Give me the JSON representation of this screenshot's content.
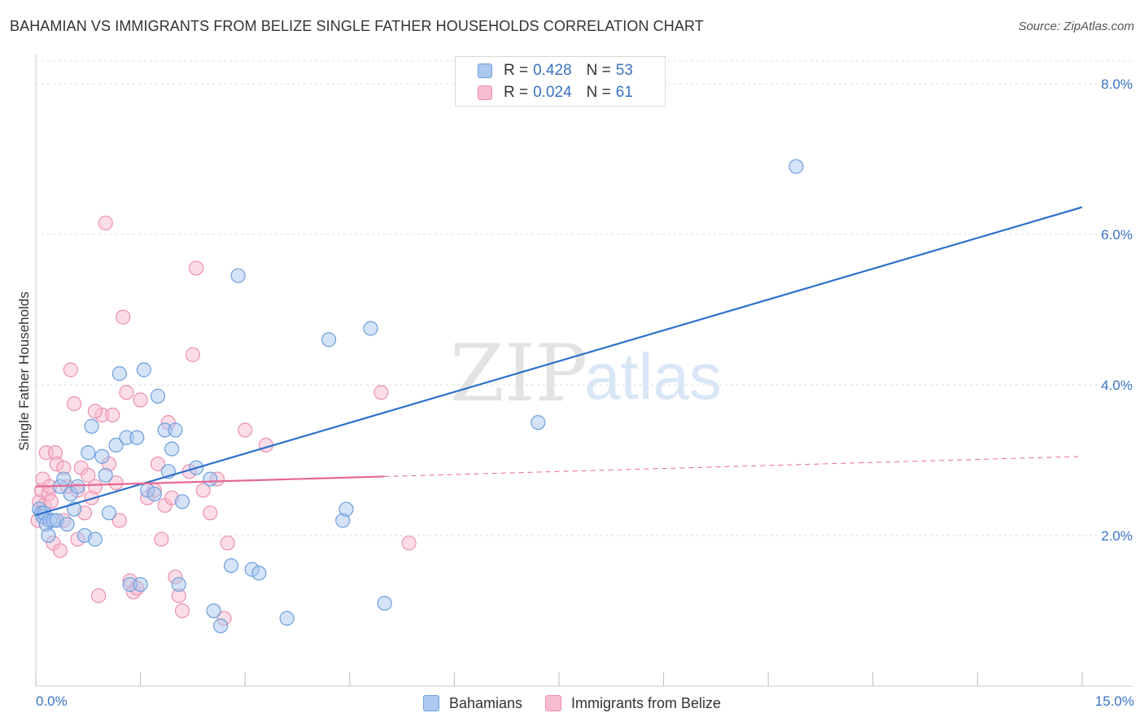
{
  "header": {
    "title": "BAHAMIAN VS IMMIGRANTS FROM BELIZE SINGLE FATHER HOUSEHOLDS CORRELATION CHART",
    "source": "Source: ZipAtlas.com"
  },
  "watermark": {
    "zip": "ZIP",
    "atlas": "atlas"
  },
  "legend": {
    "r_label": "R =",
    "n_label": "N =",
    "series": [
      {
        "name": "Bahamians",
        "r": "0.428",
        "n": "53",
        "color": "#aac8f0",
        "stroke": "#6d9fdc",
        "line": "#2c6fcd"
      },
      {
        "name": "Immigrants from Belize",
        "r": "0.024",
        "n": "61",
        "color": "#f8bcd0",
        "stroke": "#ec90b0",
        "line": "#e56894"
      }
    ]
  },
  "chart_data": {
    "type": "scatter",
    "title": "BAHAMIAN VS IMMIGRANTS FROM BELIZE SINGLE FATHER HOUSEHOLDS CORRELATION CHART",
    "xlabel": "",
    "ylabel": "Single Father Households",
    "xlim": [
      0,
      15
    ],
    "ylim": [
      0,
      8.3
    ],
    "x_tick_labels": [
      "0.0%",
      "15.0%"
    ],
    "y_ticks": [
      2,
      4,
      6,
      8
    ],
    "y_tick_labels": [
      "2.0%",
      "4.0%",
      "6.0%",
      "8.0%"
    ],
    "grid": true,
    "legend_position": "top-center",
    "series": [
      {
        "name": "Bahamians",
        "trend": {
          "x": [
            0,
            15
          ],
          "y": [
            2.27,
            6.36
          ],
          "dashed_from": null
        },
        "points": [
          [
            0.05,
            2.35
          ],
          [
            0.08,
            2.3
          ],
          [
            0.1,
            2.25
          ],
          [
            0.12,
            2.3
          ],
          [
            0.15,
            2.15
          ],
          [
            0.18,
            2.0
          ],
          [
            0.2,
            2.2
          ],
          [
            0.25,
            2.2
          ],
          [
            0.3,
            2.2
          ],
          [
            0.35,
            2.65
          ],
          [
            0.4,
            2.75
          ],
          [
            0.45,
            2.15
          ],
          [
            0.5,
            2.55
          ],
          [
            0.55,
            2.35
          ],
          [
            0.6,
            2.65
          ],
          [
            0.7,
            2.0
          ],
          [
            0.75,
            3.1
          ],
          [
            0.8,
            3.45
          ],
          [
            0.85,
            1.95
          ],
          [
            0.95,
            3.05
          ],
          [
            1.0,
            2.8
          ],
          [
            1.05,
            2.3
          ],
          [
            1.15,
            3.2
          ],
          [
            1.2,
            4.15
          ],
          [
            1.3,
            3.3
          ],
          [
            1.35,
            1.35
          ],
          [
            1.45,
            3.3
          ],
          [
            1.5,
            1.35
          ],
          [
            1.55,
            4.2
          ],
          [
            1.6,
            2.6
          ],
          [
            1.7,
            2.55
          ],
          [
            1.75,
            3.85
          ],
          [
            1.85,
            3.4
          ],
          [
            1.9,
            2.85
          ],
          [
            1.95,
            3.15
          ],
          [
            2.0,
            3.4
          ],
          [
            2.05,
            1.35
          ],
          [
            2.1,
            2.45
          ],
          [
            2.3,
            2.9
          ],
          [
            2.5,
            2.75
          ],
          [
            2.55,
            1.0
          ],
          [
            2.65,
            0.8
          ],
          [
            2.8,
            1.6
          ],
          [
            2.9,
            5.45
          ],
          [
            3.1,
            1.55
          ],
          [
            3.2,
            1.5
          ],
          [
            3.6,
            0.9
          ],
          [
            4.2,
            4.6
          ],
          [
            4.4,
            2.2
          ],
          [
            4.45,
            2.35
          ],
          [
            4.8,
            4.75
          ],
          [
            5.0,
            1.1
          ],
          [
            7.2,
            3.5
          ],
          [
            10.9,
            6.9
          ]
        ]
      },
      {
        "name": "Immigrants from Belize",
        "trend": {
          "x": [
            0,
            15
          ],
          "y": [
            2.65,
            3.05
          ],
          "dashed_from": 5
        },
        "points": [
          [
            0.03,
            2.2
          ],
          [
            0.05,
            2.45
          ],
          [
            0.08,
            2.6
          ],
          [
            0.1,
            2.75
          ],
          [
            0.12,
            2.4
          ],
          [
            0.15,
            3.1
          ],
          [
            0.18,
            2.55
          ],
          [
            0.2,
            2.65
          ],
          [
            0.25,
            1.9
          ],
          [
            0.28,
            3.1
          ],
          [
            0.3,
            2.95
          ],
          [
            0.35,
            1.8
          ],
          [
            0.4,
            2.2
          ],
          [
            0.45,
            2.65
          ],
          [
            0.5,
            4.2
          ],
          [
            0.55,
            3.75
          ],
          [
            0.6,
            1.95
          ],
          [
            0.65,
            2.9
          ],
          [
            0.7,
            2.3
          ],
          [
            0.75,
            2.8
          ],
          [
            0.8,
            2.5
          ],
          [
            0.85,
            2.65
          ],
          [
            0.9,
            1.2
          ],
          [
            0.95,
            3.6
          ],
          [
            1.0,
            6.15
          ],
          [
            1.05,
            2.95
          ],
          [
            1.1,
            3.6
          ],
          [
            1.2,
            2.2
          ],
          [
            1.25,
            4.9
          ],
          [
            1.3,
            3.9
          ],
          [
            1.35,
            1.4
          ],
          [
            1.4,
            1.25
          ],
          [
            1.45,
            1.3
          ],
          [
            1.5,
            3.8
          ],
          [
            1.6,
            2.5
          ],
          [
            1.7,
            2.6
          ],
          [
            1.75,
            2.95
          ],
          [
            1.8,
            1.95
          ],
          [
            1.85,
            2.4
          ],
          [
            1.9,
            3.5
          ],
          [
            1.95,
            2.5
          ],
          [
            2.0,
            1.45
          ],
          [
            2.05,
            1.2
          ],
          [
            2.1,
            1.0
          ],
          [
            2.2,
            2.85
          ],
          [
            2.25,
            4.4
          ],
          [
            2.3,
            5.55
          ],
          [
            2.4,
            2.6
          ],
          [
            2.5,
            2.3
          ],
          [
            2.6,
            2.75
          ],
          [
            2.7,
            0.9
          ],
          [
            2.75,
            1.9
          ],
          [
            3.0,
            3.4
          ],
          [
            3.3,
            3.2
          ],
          [
            4.95,
            3.9
          ],
          [
            5.35,
            1.9
          ],
          [
            0.22,
            2.45
          ],
          [
            0.6,
            2.6
          ],
          [
            0.85,
            3.65
          ],
          [
            1.15,
            2.7
          ],
          [
            0.4,
            2.9
          ]
        ]
      }
    ]
  }
}
